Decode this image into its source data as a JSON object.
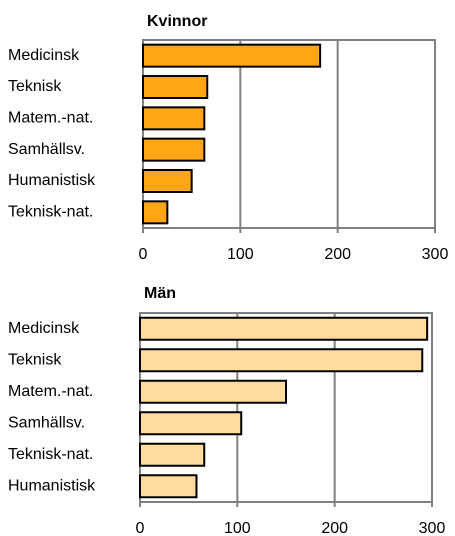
{
  "chart_data": [
    {
      "type": "bar",
      "orientation": "horizontal",
      "title": "Kvinnor",
      "categories": [
        "Medicinsk",
        "Teknisk",
        "Matem.-nat.",
        "Samhällsv.",
        "Humanistisk",
        "Teknisk-nat."
      ],
      "values": [
        182,
        66,
        63,
        63,
        50,
        25
      ],
      "color": "#ffa516",
      "xlim": [
        0,
        300
      ],
      "xticks": [
        0,
        100,
        200,
        300
      ],
      "grid": true
    },
    {
      "type": "bar",
      "orientation": "horizontal",
      "title": "Män",
      "categories": [
        "Medicinsk",
        "Teknisk",
        "Matem.-nat.",
        "Samhällsv.",
        "Teknisk-nat.",
        "Humanistisk"
      ],
      "values": [
        295,
        290,
        150,
        104,
        66,
        58
      ],
      "color": "#ffdb9e",
      "xlim": [
        0,
        300
      ],
      "xticks": [
        0,
        100,
        200,
        300
      ],
      "grid": true
    }
  ]
}
